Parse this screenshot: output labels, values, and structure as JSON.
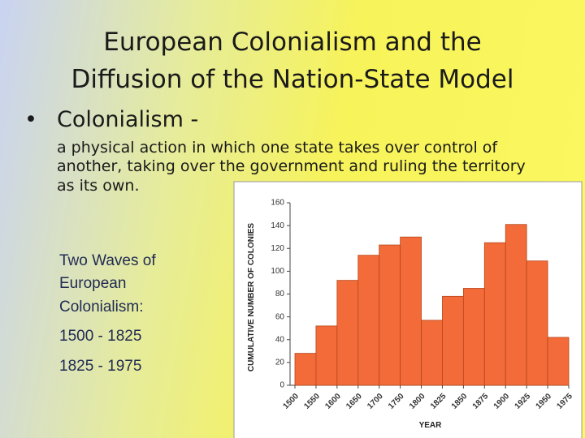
{
  "slide": {
    "title": [
      "European Colonialism and the",
      "Diffusion of the Nation-State Model"
    ],
    "bullet": "Colonialism -",
    "definition": [
      "a physical action in which one state takes over control of",
      "another, taking over the government and ruling the territory",
      "as its own."
    ],
    "waves_heading": [
      "Two Waves of",
      "European",
      "Colonialism:"
    ],
    "waves": [
      "1500 - 1825",
      "1825 - 1975"
    ]
  },
  "chart_data": {
    "type": "histogram",
    "bins": [
      1500,
      1550,
      1600,
      1650,
      1700,
      1750,
      1800,
      1825,
      1850,
      1875,
      1900,
      1925,
      1950,
      1975
    ],
    "values": [
      28,
      52,
      92,
      114,
      123,
      130,
      57,
      78,
      85,
      125,
      141,
      109,
      42
    ],
    "color": "#f26b38",
    "ylim": [
      0,
      160
    ],
    "yticks": [
      0,
      20,
      40,
      60,
      80,
      100,
      120,
      140,
      160
    ],
    "y_label": "CUMULATIVE NUMBER OF COLONIES",
    "x_label": "YEAR"
  }
}
